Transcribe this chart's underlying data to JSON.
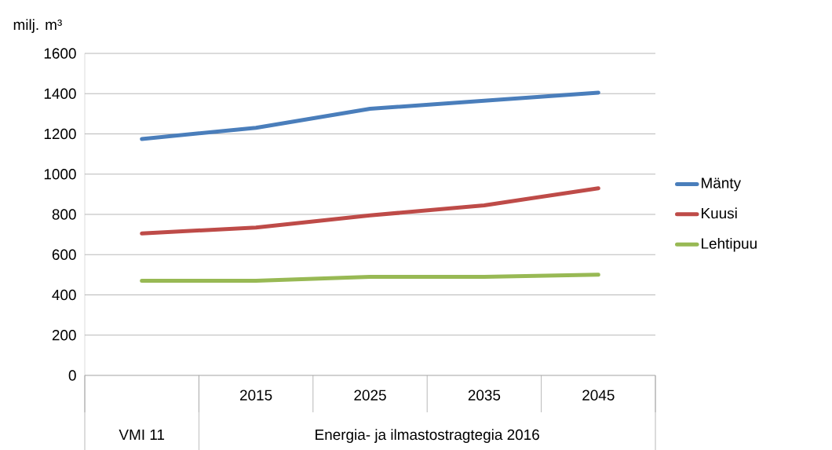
{
  "chart_data": {
    "type": "line",
    "ylabel": "milj. m³",
    "categories": [
      null,
      "2015",
      "2025",
      "2035",
      "2045"
    ],
    "annotations": [
      "VMI 11",
      "Energia- ja ilmastostragtegia 2016"
    ],
    "series": [
      {
        "name": "Mänty",
        "color": "#4a7ebb",
        "values": [
          1175,
          1230,
          1325,
          1365,
          1405
        ]
      },
      {
        "name": "Kuusi",
        "color": "#be4b48",
        "values": [
          705,
          735,
          795,
          845,
          930
        ]
      },
      {
        "name": "Lehtipuu",
        "color": "#98b954",
        "values": [
          470,
          470,
          490,
          490,
          500
        ]
      }
    ],
    "ylim": [
      0,
      1600
    ],
    "yticks": [
      0,
      200,
      400,
      600,
      800,
      1000,
      1200,
      1400,
      1600
    ],
    "grid": "y",
    "legend": "right"
  }
}
